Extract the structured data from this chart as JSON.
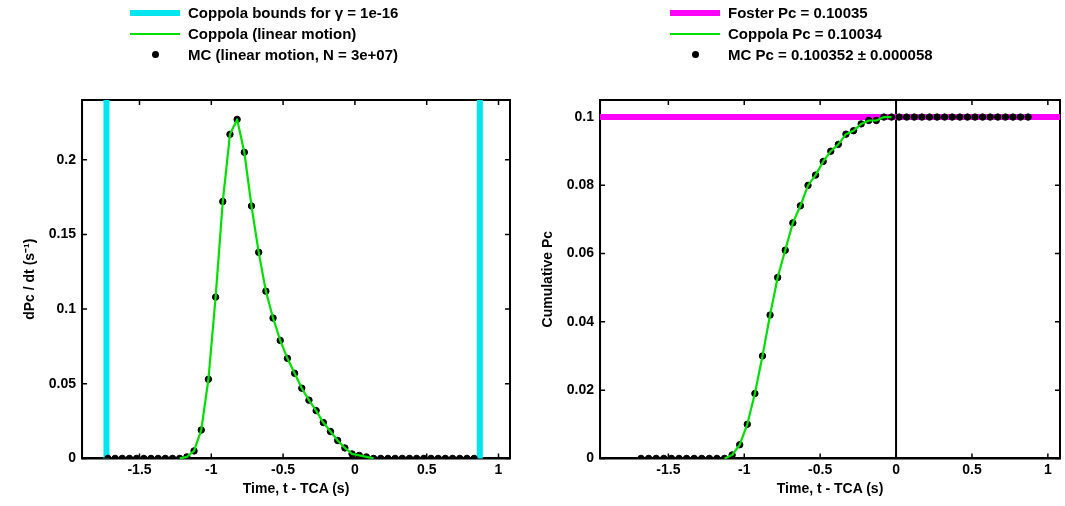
{
  "chart_data": [
    {
      "type": "line",
      "xlabel": "Time, t - TCA (s)",
      "ylabel": "dPc / dt (s⁻¹)",
      "xlim": [
        -1.9,
        1.08
      ],
      "xticks": [
        -1.5,
        -1,
        -0.5,
        0,
        0.5,
        1
      ],
      "ylim": [
        0,
        0.24
      ],
      "yticks": [
        0,
        0.05,
        0.1,
        0.15,
        0.2
      ],
      "legend": "top",
      "line_style": "solid",
      "series": [
        {
          "name": "Coppola bounds for γ = 1e-16",
          "color": "#00e5ee",
          "type": "line",
          "x": [
            -1.73,
            -1.73
          ],
          "values": [
            0,
            0.24
          ]
        },
        {
          "color": "#00e5ee",
          "type": "line",
          "x": [
            0.87,
            0.87
          ],
          "values": [
            0,
            0.24
          ]
        },
        {
          "name": "Coppola (linear motion)",
          "color": "#00e000",
          "type": "line",
          "x": [
            -1.22,
            -1.17,
            -1.12,
            -1.07,
            -1.02,
            -0.97,
            -0.92,
            -0.87,
            -0.82,
            -0.77,
            -0.72,
            -0.67,
            -0.62,
            -0.57,
            -0.52,
            -0.47,
            -0.42,
            -0.37,
            -0.32,
            -0.27,
            -0.22,
            -0.17,
            -0.12,
            -0.07,
            -0.02,
            0.03,
            0.08,
            0.13
          ],
          "values": [
            0,
            0.001,
            0.005,
            0.019,
            0.053,
            0.108,
            0.172,
            0.217,
            0.227,
            0.205,
            0.169,
            0.138,
            0.112,
            0.094,
            0.079,
            0.067,
            0.057,
            0.047,
            0.039,
            0.032,
            0.024,
            0.018,
            0.012,
            0.007,
            0.003,
            0.002,
            0.001,
            0
          ]
        },
        {
          "name": "MC (linear motion, N = 3e+07)",
          "color": "#000000",
          "type": "scatter",
          "marker": "circle",
          "x": [
            -1.72,
            -1.67,
            -1.62,
            -1.57,
            -1.52,
            -1.47,
            -1.42,
            -1.37,
            -1.32,
            -1.27,
            -1.22,
            -1.17,
            -1.12,
            -1.07,
            -1.02,
            -0.97,
            -0.92,
            -0.87,
            -0.82,
            -0.77,
            -0.72,
            -0.67,
            -0.62,
            -0.57,
            -0.52,
            -0.47,
            -0.42,
            -0.37,
            -0.32,
            -0.27,
            -0.22,
            -0.17,
            -0.12,
            -0.07,
            -0.02,
            0.03,
            0.08,
            0.13,
            0.18,
            0.23,
            0.28,
            0.33,
            0.38,
            0.43,
            0.48,
            0.53,
            0.58,
            0.63,
            0.68,
            0.73,
            0.78,
            0.83
          ],
          "values": [
            0,
            0,
            0,
            0,
            0,
            0,
            0,
            0,
            0,
            0,
            0,
            0.001,
            0.005,
            0.019,
            0.053,
            0.108,
            0.172,
            0.217,
            0.227,
            0.205,
            0.169,
            0.138,
            0.112,
            0.094,
            0.079,
            0.067,
            0.057,
            0.047,
            0.039,
            0.032,
            0.024,
            0.018,
            0.012,
            0.007,
            0.003,
            0.002,
            0.001,
            0,
            0,
            0,
            0,
            0,
            0,
            0,
            0,
            0,
            0,
            0,
            0,
            0,
            0,
            0
          ]
        }
      ]
    },
    {
      "type": "line",
      "xlabel": "Time, t - TCA (s)",
      "ylabel": "Cumulative Pc",
      "xlim": [
        -1.95,
        1.08
      ],
      "xticks": [
        -1.5,
        -1,
        -0.5,
        0,
        0.5,
        1
      ],
      "ylim": [
        0,
        0.105
      ],
      "yticks": [
        0,
        0.02,
        0.04,
        0.06,
        0.08,
        0.1
      ],
      "legend": "top",
      "line_style": "solid",
      "ref_lines": [
        {
          "axis": "x",
          "value": 0,
          "color": "#000000"
        }
      ],
      "series": [
        {
          "name": "Foster Pc = 0.10035",
          "color": "#ff00ff",
          "type": "line",
          "x": [
            -1.95,
            1.08
          ],
          "values": [
            0.1,
            0.1
          ]
        },
        {
          "name": "Coppola Pc = 0.10034",
          "color": "#00e000",
          "type": "line",
          "x": [
            -1.13,
            -1.08,
            -1.03,
            -0.98,
            -0.93,
            -0.88,
            -0.83,
            -0.78,
            -0.73,
            -0.68,
            -0.63,
            -0.58,
            -0.53,
            -0.48,
            -0.43,
            -0.38,
            -0.33,
            -0.28,
            -0.23,
            -0.18,
            -0.13,
            -0.08,
            -0.03
          ],
          "values": [
            0,
            0.001,
            0.004,
            0.01,
            0.019,
            0.03,
            0.042,
            0.053,
            0.061,
            0.069,
            0.074,
            0.08,
            0.083,
            0.087,
            0.09,
            0.092,
            0.095,
            0.096,
            0.098,
            0.099,
            0.099,
            0.1,
            0.1
          ]
        },
        {
          "name": "MC Pc = 0.100352 ± 0.000058",
          "color": "#000000",
          "type": "scatter",
          "marker": "circle",
          "x": [
            -1.68,
            -1.63,
            -1.58,
            -1.53,
            -1.48,
            -1.43,
            -1.38,
            -1.33,
            -1.28,
            -1.23,
            -1.18,
            -1.13,
            -1.08,
            -1.03,
            -0.98,
            -0.93,
            -0.88,
            -0.83,
            -0.78,
            -0.73,
            -0.68,
            -0.63,
            -0.58,
            -0.53,
            -0.48,
            -0.43,
            -0.38,
            -0.33,
            -0.28,
            -0.23,
            -0.18,
            -0.13,
            -0.08,
            -0.03,
            0.02,
            0.07,
            0.12,
            0.17,
            0.22,
            0.27,
            0.32,
            0.37,
            0.42,
            0.47,
            0.52,
            0.57,
            0.62,
            0.67,
            0.72,
            0.77,
            0.82,
            0.87
          ],
          "values": [
            0,
            0,
            0,
            0,
            0,
            0,
            0,
            0,
            0,
            0,
            0,
            0,
            0.001,
            0.004,
            0.01,
            0.019,
            0.03,
            0.042,
            0.053,
            0.061,
            0.069,
            0.074,
            0.08,
            0.083,
            0.087,
            0.09,
            0.092,
            0.095,
            0.096,
            0.098,
            0.099,
            0.099,
            0.1,
            0.1,
            0.1,
            0.1,
            0.1,
            0.1,
            0.1,
            0.1,
            0.1,
            0.1,
            0.1,
            0.1,
            0.1,
            0.1,
            0.1,
            0.1,
            0.1,
            0.1,
            0.1,
            0.1
          ]
        }
      ]
    }
  ]
}
